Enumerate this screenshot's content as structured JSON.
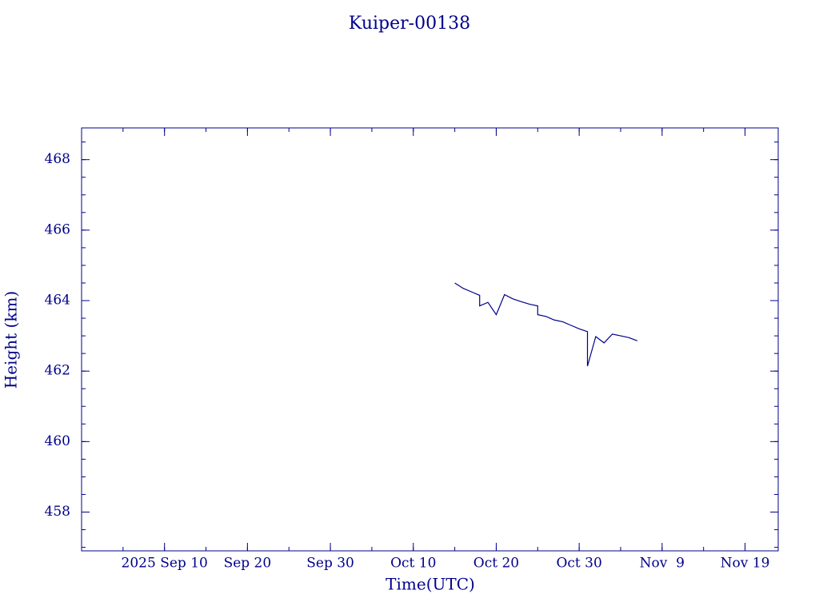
{
  "chart_data": {
    "type": "line",
    "title": "Kuiper-00138",
    "x_label": "Time(UTC)",
    "y_label": "Height (km)",
    "color": "#00008b",
    "xlim": [
      "2025-08-31",
      "2025-11-23"
    ],
    "xticks": [
      {
        "value": "2025-09-10",
        "label": "2025 Sep 10"
      },
      {
        "value": "2025-09-20",
        "label": "Sep 20"
      },
      {
        "value": "2025-09-30",
        "label": "Sep 30"
      },
      {
        "value": "2025-10-10",
        "label": "Oct 10"
      },
      {
        "value": "2025-10-20",
        "label": "Oct 20"
      },
      {
        "value": "2025-10-30",
        "label": "Oct 30"
      },
      {
        "value": "2025-11-09",
        "label": "Nov  9"
      },
      {
        "value": "2025-11-19",
        "label": "Nov 19"
      }
    ],
    "ylim": [
      456.9,
      468.9
    ],
    "yticks": [
      458,
      460,
      462,
      464,
      466,
      468
    ],
    "series": [
      {
        "name": "Kuiper-00138",
        "x": [
          "2025-10-15",
          "2025-10-16",
          "2025-10-17",
          "2025-10-18",
          "2025-10-18",
          "2025-10-19",
          "2025-10-20",
          "2025-10-21",
          "2025-10-22",
          "2025-10-23",
          "2025-10-24",
          "2025-10-25",
          "2025-10-25",
          "2025-10-26",
          "2025-10-27",
          "2025-10-28",
          "2025-10-29",
          "2025-10-30",
          "2025-10-31",
          "2025-10-31",
          "2025-11-01",
          "2025-11-02",
          "2025-11-03",
          "2025-11-04",
          "2025-11-05",
          "2025-11-06"
        ],
        "values": [
          464.5,
          464.35,
          464.25,
          464.15,
          463.85,
          463.95,
          463.6,
          464.17,
          464.05,
          463.97,
          463.9,
          463.85,
          463.6,
          463.55,
          463.45,
          463.4,
          463.3,
          463.2,
          463.12,
          462.14,
          462.98,
          462.8,
          463.05,
          463.0,
          462.95,
          462.86
        ]
      }
    ]
  }
}
